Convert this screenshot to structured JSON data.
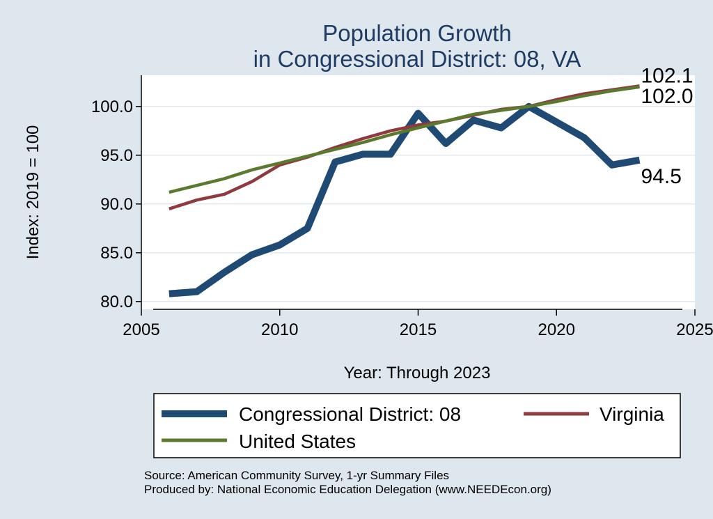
{
  "chart_data": {
    "type": "line",
    "title": [
      "Population Growth",
      "in Congressional District: 08, VA"
    ],
    "xlabel": "Year: Through 2023",
    "ylabel": "Index: 2019 = 100",
    "xlim": [
      2005,
      2025
    ],
    "ylim": [
      79.2,
      103.2
    ],
    "x_ticks": [
      "2005",
      "2010",
      "2015",
      "2020",
      "2025"
    ],
    "y_ticks": [
      "80.0",
      "85.0",
      "90.0",
      "95.0",
      "100.0"
    ],
    "grid": "horizontal",
    "legend_position": "bottom",
    "x": [
      2006,
      2007,
      2008,
      2009,
      2010,
      2011,
      2012,
      2013,
      2014,
      2015,
      2016,
      2017,
      2018,
      2019,
      2020,
      2021,
      2022,
      2023
    ],
    "series": [
      {
        "name": "Congressional District: 08",
        "color": "#1f4a73",
        "values": [
          80.8,
          81.0,
          83.0,
          84.8,
          85.8,
          87.5,
          94.3,
          95.1,
          95.1,
          99.3,
          96.2,
          98.6,
          97.8,
          100.0,
          98.4,
          96.8,
          94.0,
          94.5
        ],
        "end_label": "94.5"
      },
      {
        "name": "Virginia",
        "color": "#8e3a3f",
        "values": [
          89.5,
          90.4,
          91.0,
          92.3,
          94.0,
          94.8,
          95.8,
          96.7,
          97.5,
          98.1,
          98.5,
          99.1,
          99.7,
          100.0,
          100.7,
          101.3,
          101.7,
          102.1
        ],
        "end_label": "102.1"
      },
      {
        "name": "United States",
        "color": "#5b7a2e",
        "values": [
          91.2,
          91.9,
          92.6,
          93.5,
          94.2,
          94.9,
          95.6,
          96.3,
          97.1,
          97.8,
          98.5,
          99.2,
          99.6,
          100.0,
          100.5,
          101.1,
          101.6,
          102.0
        ],
        "end_label": "102.0"
      }
    ],
    "source_lines": [
      "Source: American Community Survey, 1-yr Summary Files",
      "Produced by: National Economic Education Delegation (www.NEEDEcon.org)"
    ]
  }
}
